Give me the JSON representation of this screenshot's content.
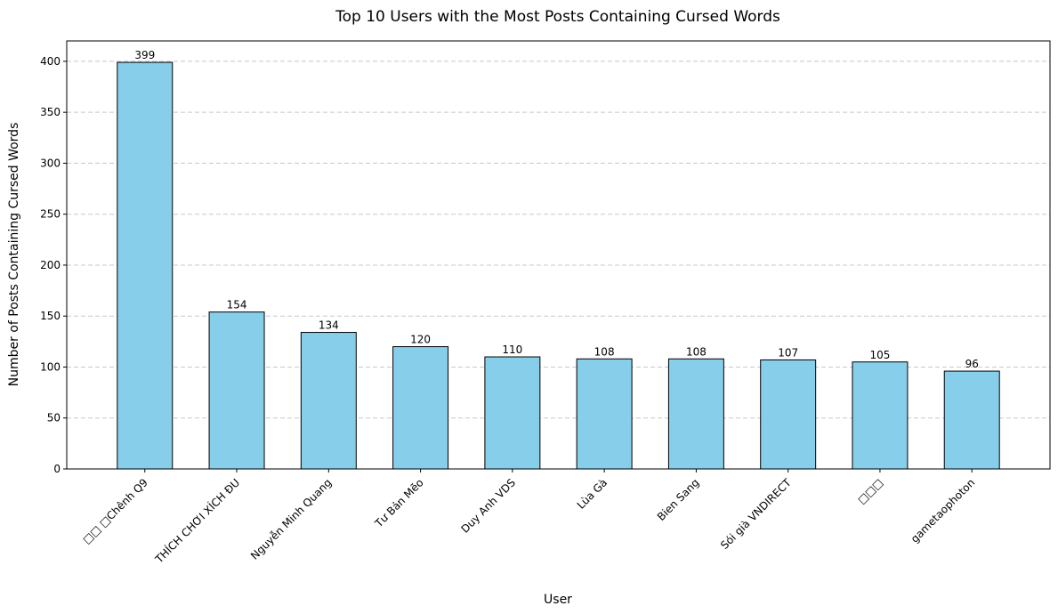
{
  "chart_data": {
    "type": "bar",
    "title": "Top 10 Users with the Most Posts Containing Cursed Words",
    "xlabel": "User",
    "ylabel": "Number of Posts Containing Cursed Words",
    "categories": [
      "□□ □Chênh Q9",
      "THÍCH CHƠI XÍCH ĐU",
      "Nguyễn Minh Quang",
      "Tư Bản Mẽo",
      "Duy Anh VDS",
      "Lùa Gà",
      "Bien Sang",
      "Sói già VNDIRECT",
      "□□□",
      "gametaophoton"
    ],
    "values": [
      399,
      154,
      134,
      120,
      110,
      108,
      108,
      107,
      105,
      96
    ],
    "ylim": [
      0,
      420
    ],
    "yticks": [
      0,
      50,
      100,
      150,
      200,
      250,
      300,
      350,
      400
    ],
    "grid": "y-dashed",
    "bar_color": "#87ceeb",
    "edge_color": "#000000"
  }
}
